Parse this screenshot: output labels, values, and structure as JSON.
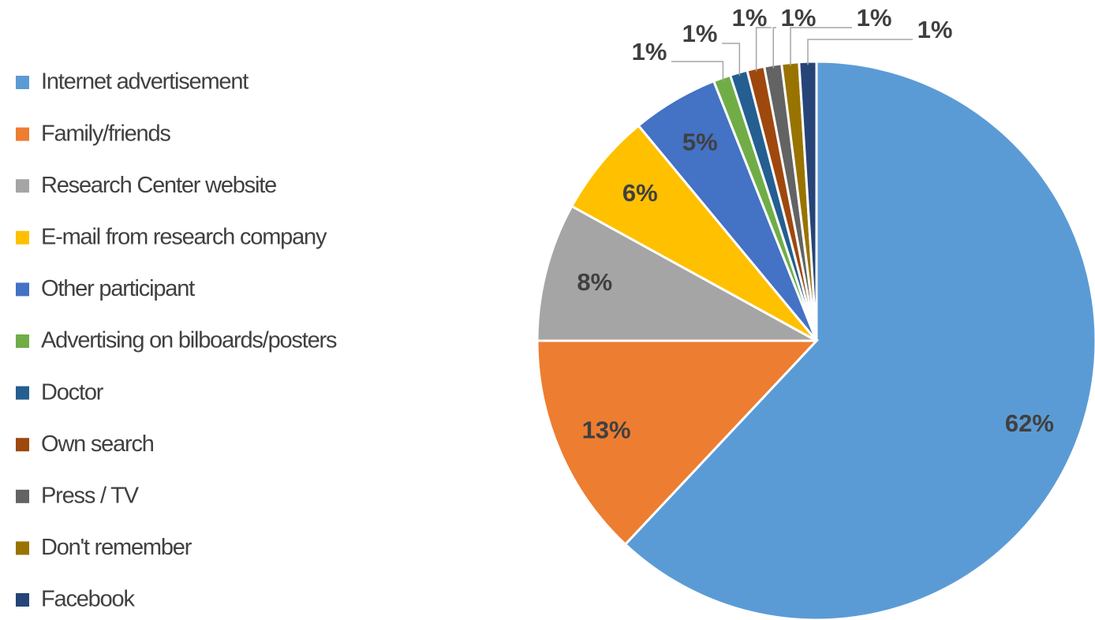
{
  "chart_data": {
    "type": "pie",
    "categories": [
      "Internet advertisement",
      "Family/friends",
      "Research Center website",
      "E-mail from research company",
      "Other participant",
      "Advertising on bilboards/posters",
      "Doctor",
      "Own search",
      "Press / TV",
      "Don't remember",
      "Facebook"
    ],
    "values": [
      62,
      13,
      8,
      6,
      5,
      1,
      1,
      1,
      1,
      1,
      1
    ],
    "value_labels": [
      "62%",
      "13%",
      "8%",
      "6%",
      "5%",
      "1%",
      "1%",
      "1%",
      "1%",
      "1%",
      "1%"
    ],
    "colors": [
      "#5b9bd5",
      "#ed7d31",
      "#a5a5a5",
      "#ffc000",
      "#4472c4",
      "#70ad47",
      "#255e91",
      "#9e480e",
      "#636363",
      "#997300",
      "#264478"
    ],
    "legend": "left"
  }
}
